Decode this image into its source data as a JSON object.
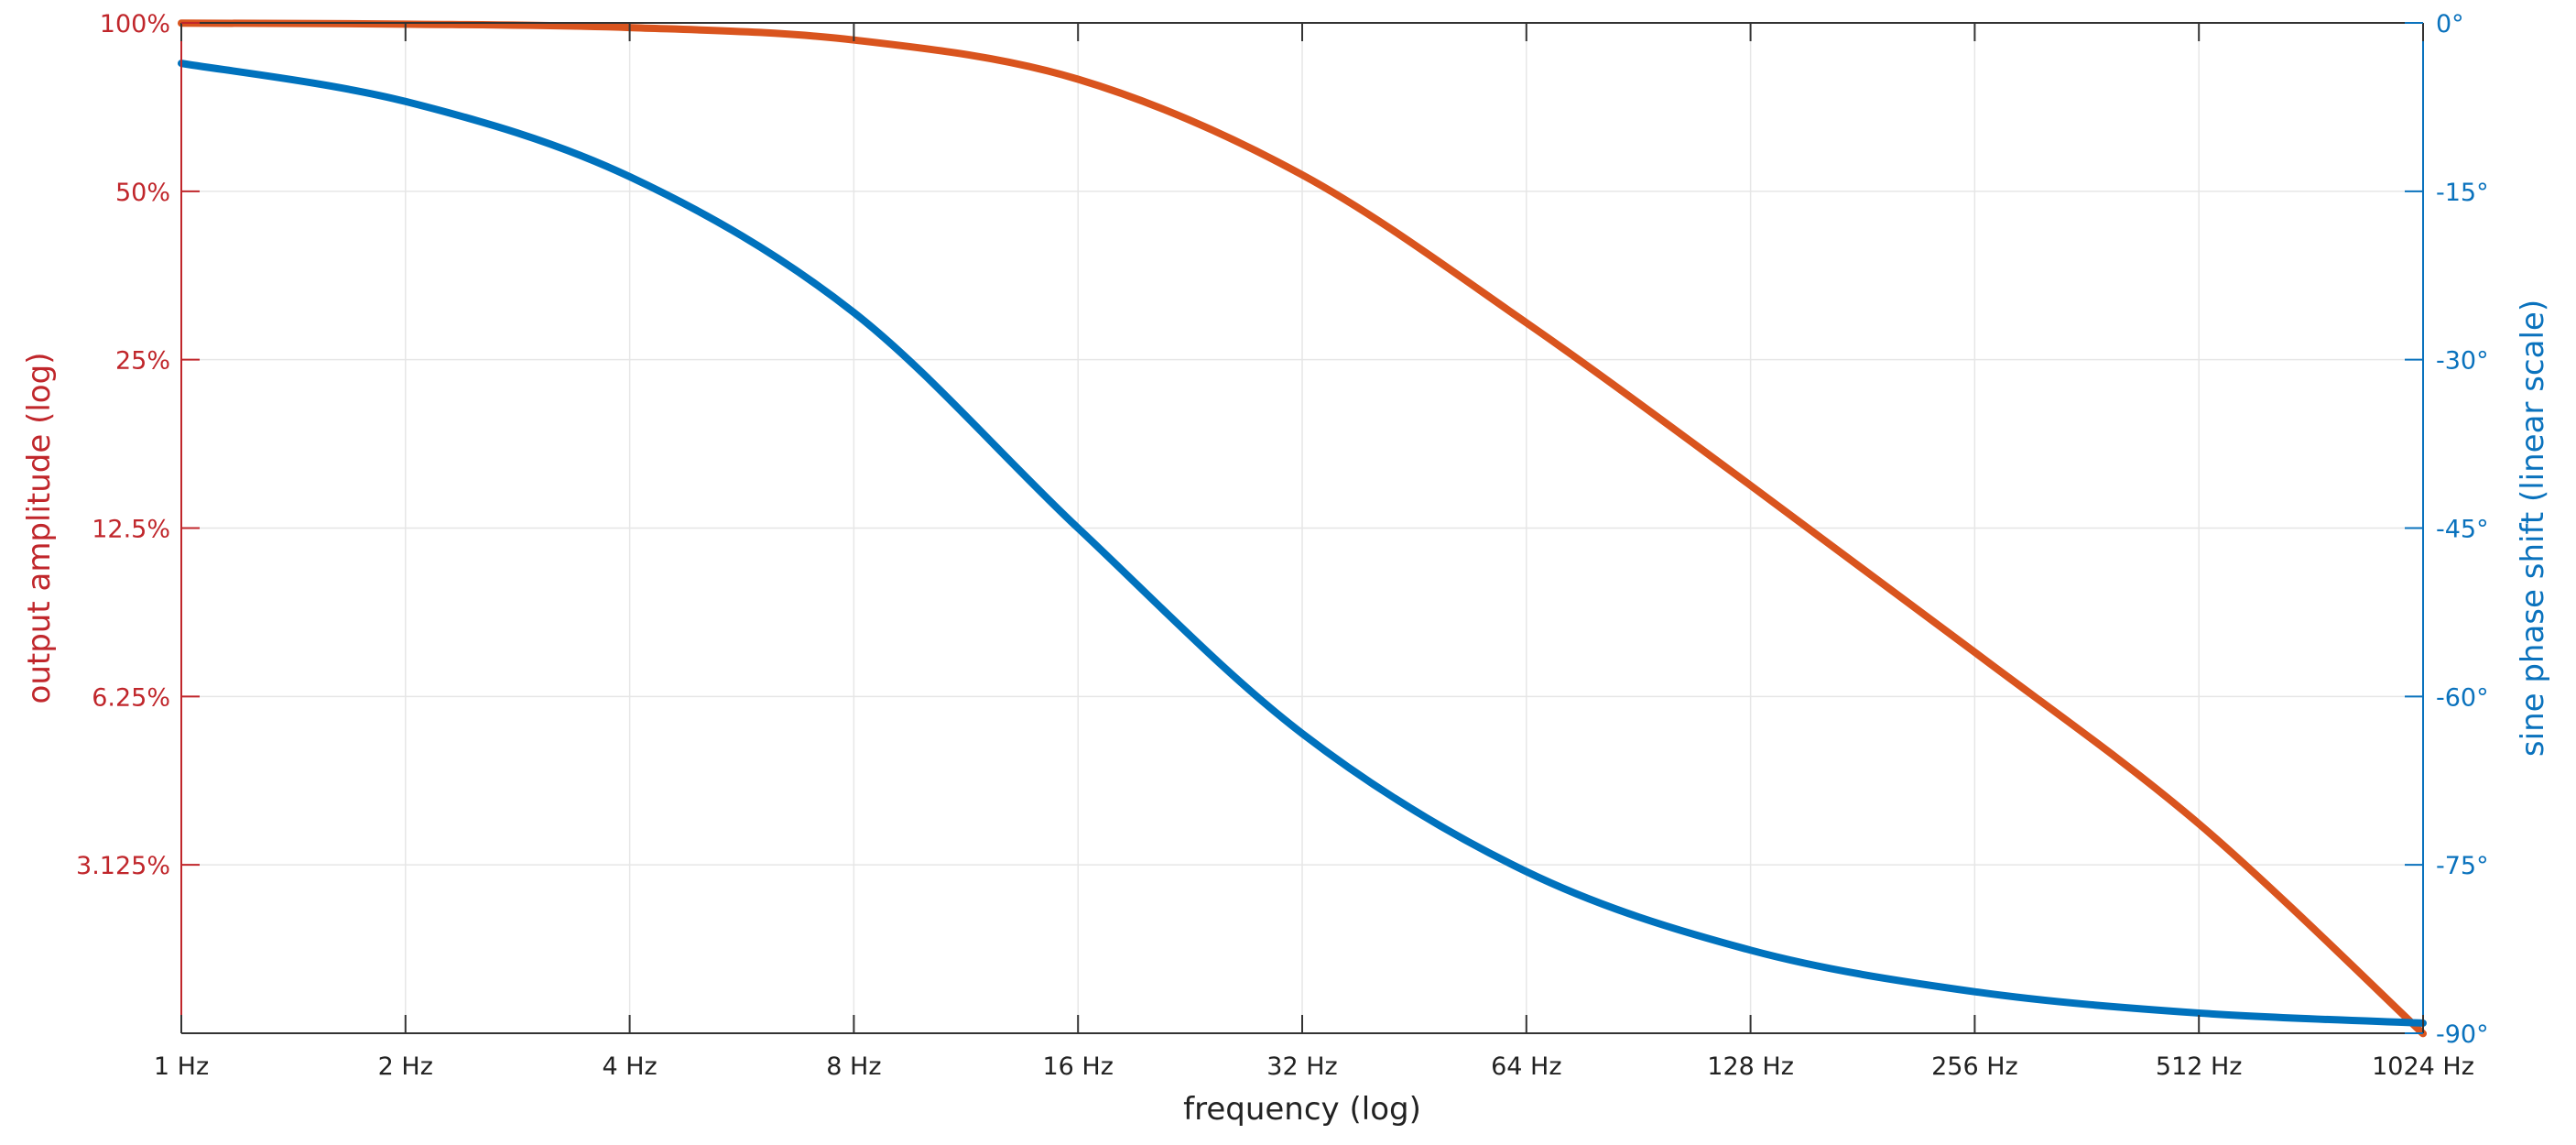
{
  "chart_data": {
    "type": "line",
    "title": "",
    "xlabel": "frequency (log)",
    "ylabel_left": "output amplitude (log)",
    "ylabel_right": "sine phase shift (linear scale)",
    "x_scale": "log2",
    "xlim": [
      1,
      1024
    ],
    "x_ticks": [
      1,
      2,
      4,
      8,
      16,
      32,
      64,
      128,
      256,
      512,
      1024
    ],
    "x_tick_labels": [
      "1 Hz",
      "2 Hz",
      "4 Hz",
      "8 Hz",
      "16 Hz",
      "32 Hz",
      "64 Hz",
      "128 Hz",
      "256 Hz",
      "512 Hz",
      "1024 Hz"
    ],
    "y_left_scale": "log2",
    "y_left_lim": [
      1.5625,
      100
    ],
    "y_left_ticks": [
      100,
      50,
      25,
      12.5,
      6.25,
      3.125
    ],
    "y_left_tick_labels": [
      "100%",
      "50%",
      "25%",
      "12.5%",
      "6.25%",
      "3.125%"
    ],
    "y_right_lim": [
      -90,
      0
    ],
    "y_right_ticks": [
      0,
      -15,
      -30,
      -45,
      -60,
      -75,
      -90
    ],
    "y_right_tick_labels": [
      "0°",
      "-15°",
      "-30°",
      "-45°",
      "-60°",
      "-75°",
      "-90°"
    ],
    "grid": true,
    "colors": {
      "left_axis": "#c0262b",
      "right_axis": "#0a72bd",
      "grid": "#e6e6e6",
      "frame": "#333333"
    },
    "series": [
      {
        "axis": "left",
        "color": "#d9541e",
        "x": [
          1,
          2,
          4,
          8,
          16,
          32,
          64,
          128,
          256,
          512,
          1024
        ],
        "y": [
          99.9,
          99.5,
          98.1,
          93.2,
          79.3,
          53.5,
          29.1,
          14.9,
          7.5,
          3.7,
          1.56
        ]
      },
      {
        "axis": "right",
        "color": "#0072bd",
        "x": [
          1,
          2,
          4,
          8,
          16,
          32,
          64,
          128,
          256,
          512,
          1024
        ],
        "y": [
          -3.6,
          -7.0,
          -13.7,
          -25.8,
          -45.0,
          -63.3,
          -75.6,
          -82.6,
          -86.3,
          -88.2,
          -89.1
        ]
      }
    ]
  }
}
